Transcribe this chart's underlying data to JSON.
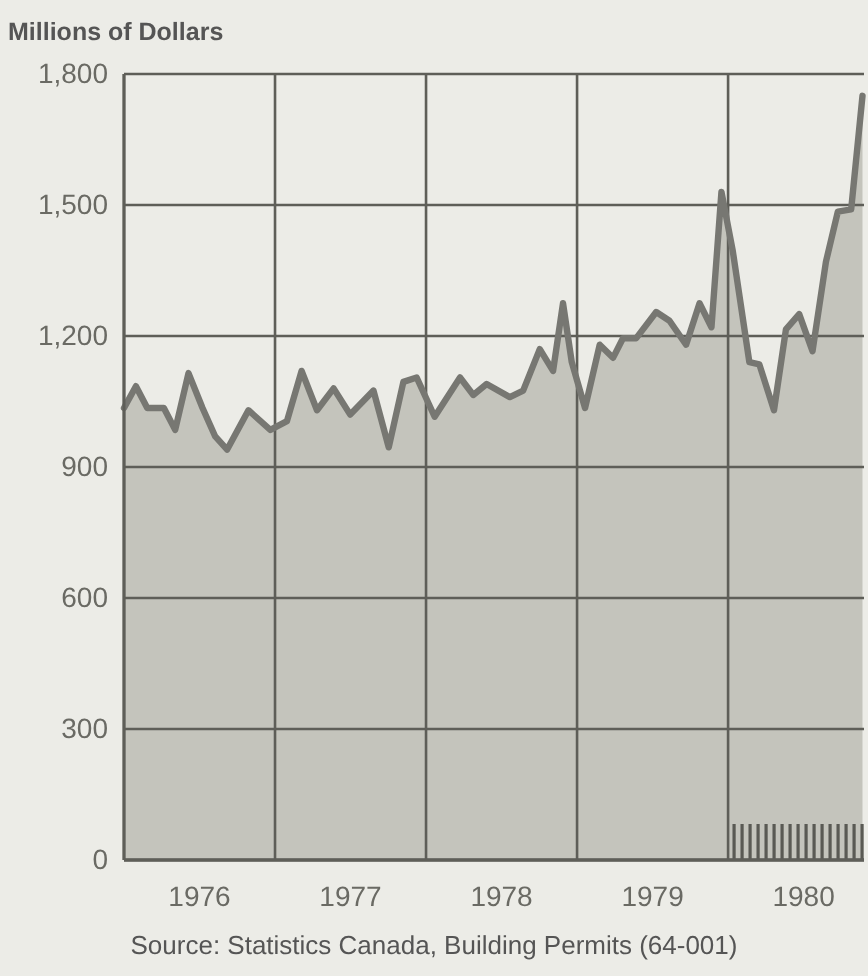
{
  "chart_data": {
    "type": "area",
    "ylabel": "Millions of Dollars",
    "annotations": [
      "Source: Statistics Canada, Building Permits (64-001)"
    ],
    "xlim": [
      1976,
      1980.9
    ],
    "ylim": [
      0,
      1800
    ],
    "xticks": [
      {
        "value": 1976,
        "label": null
      },
      {
        "value": 1976.5,
        "label": "1976"
      },
      {
        "value": 1977,
        "label": null
      },
      {
        "value": 1977.5,
        "label": "1977"
      },
      {
        "value": 1978,
        "label": null
      },
      {
        "value": 1978.5,
        "label": "1978"
      },
      {
        "value": 1979,
        "label": null
      },
      {
        "value": 1979.5,
        "label": "1979"
      },
      {
        "value": 1980,
        "label": null
      },
      {
        "value": 1980.5,
        "label": "1980"
      }
    ],
    "yticks": [
      {
        "value": 0,
        "label": "0"
      },
      {
        "value": 300,
        "label": "300"
      },
      {
        "value": 600,
        "label": "600"
      },
      {
        "value": 900,
        "label": "900"
      },
      {
        "value": 1200,
        "label": "1,200"
      },
      {
        "value": 1500,
        "label": "1,500"
      },
      {
        "value": 1800,
        "label": "1,800"
      }
    ],
    "grid": true,
    "series": [
      {
        "color": "#c4c4bc",
        "x": [
          1976.0,
          1976.079,
          1976.154,
          1976.264,
          1976.339,
          1976.427,
          1976.52,
          1976.604,
          1976.683,
          1976.824,
          1976.969,
          1977.079,
          1977.176,
          1977.278,
          1977.388,
          1977.498,
          1977.652,
          1977.753,
          1977.85,
          1977.938,
          1978.057,
          1978.225,
          1978.313,
          1978.401,
          1978.555,
          1978.643,
          1978.753,
          1978.841,
          1978.907,
          1978.965,
          1979.053,
          1979.15,
          1979.238,
          1979.304,
          1979.392,
          1979.524,
          1979.612,
          1979.722,
          1979.811,
          1979.89,
          1979.956,
          1980.031,
          1980.141,
          1980.207,
          1980.304,
          1980.383,
          1980.471,
          1980.559,
          1980.648,
          1980.727,
          1980.815,
          1980.89
        ],
        "values": [
          1035,
          1085,
          1035,
          1035,
          985,
          1115,
          1035,
          970,
          940,
          1030,
          985,
          1005,
          1120,
          1030,
          1080,
          1020,
          1075,
          945,
          1095,
          1105,
          1015,
          1105,
          1065,
          1090,
          1060,
          1075,
          1170,
          1120,
          1275,
          1140,
          1035,
          1180,
          1150,
          1195,
          1195,
          1255,
          1235,
          1180,
          1275,
          1220,
          1530,
          1395,
          1140,
          1135,
          1030,
          1215,
          1250,
          1165,
          1370,
          1485,
          1490,
          1750
        ]
      }
    ]
  }
}
